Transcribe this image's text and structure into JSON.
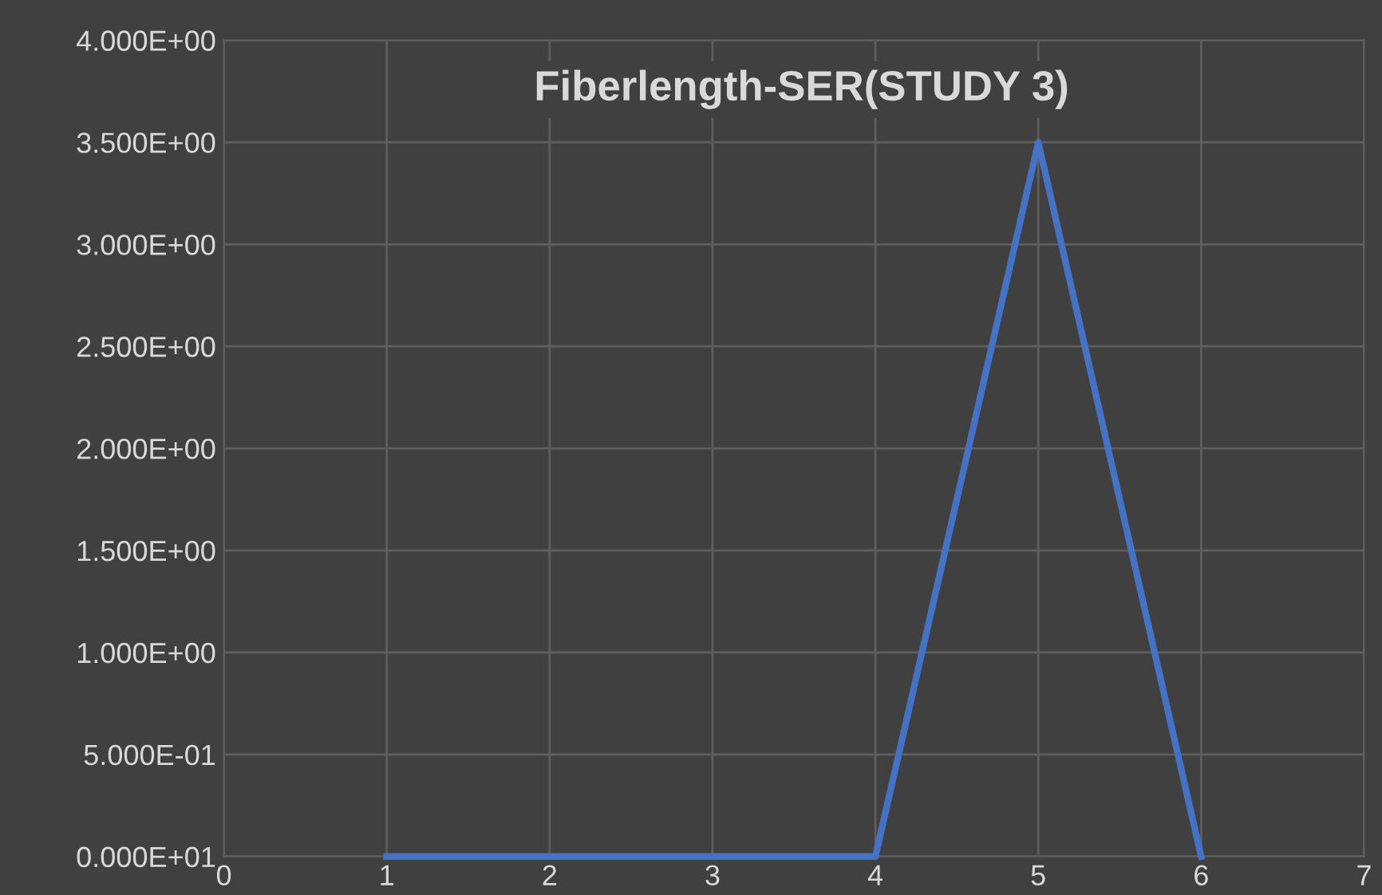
{
  "chart_data": {
    "type": "line",
    "title": "Fiberlength-SER(STUDY 3)",
    "x": [
      1,
      2,
      3,
      4,
      5,
      6
    ],
    "series": [
      {
        "color": "#4472c4",
        "values": [
          0,
          0,
          0,
          0,
          3.5,
          0
        ]
      }
    ],
    "xlim": [
      0,
      7
    ],
    "xticks": [
      0,
      1,
      2,
      3,
      4,
      5,
      6,
      7
    ],
    "ylim": [
      0,
      4
    ],
    "yticks": [
      {
        "value": 0,
        "label": "0.000E+01"
      },
      {
        "value": 0.5,
        "label": "5.000E-01"
      },
      {
        "value": 1,
        "label": "1.000E+00"
      },
      {
        "value": 1.5,
        "label": "1.500E+00"
      },
      {
        "value": 2,
        "label": "2.000E+00"
      },
      {
        "value": 2.5,
        "label": "2.500E+00"
      },
      {
        "value": 3,
        "label": "3.000E+00"
      },
      {
        "value": 3.5,
        "label": "3.500E+00"
      },
      {
        "value": 4,
        "label": "4.000E+00"
      }
    ],
    "grid": true,
    "marker": "none",
    "line_style": "solid"
  }
}
